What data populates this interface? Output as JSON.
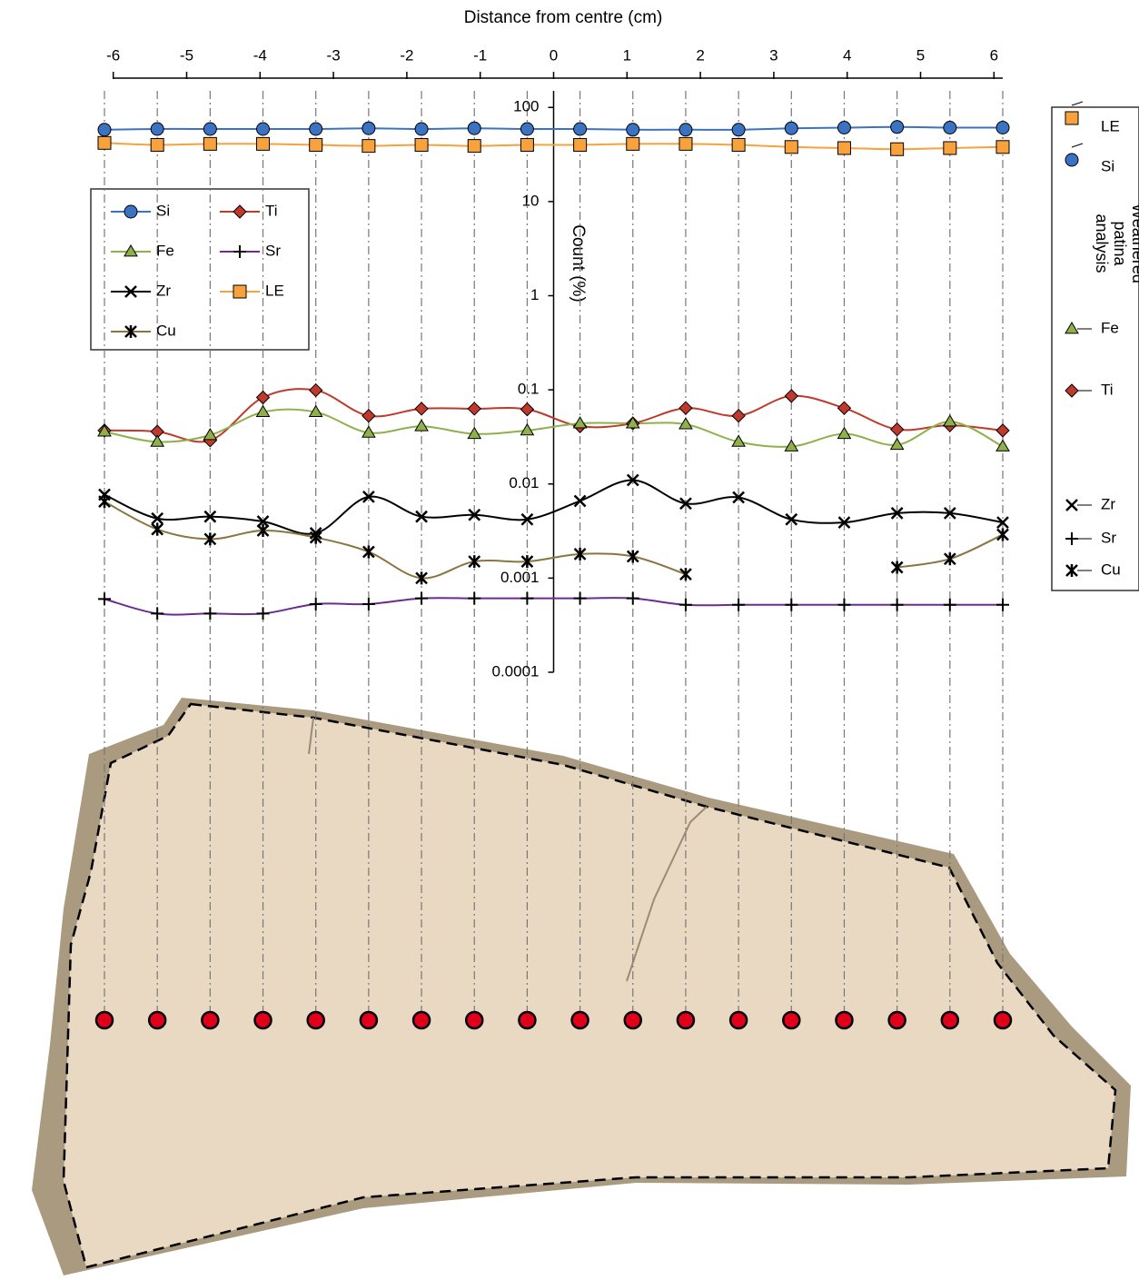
{
  "chart_data": {
    "type": "line",
    "title": "Distance from centre (cm)",
    "y_label": "Count (%)",
    "log_scale_y": true,
    "x": [
      -6.12,
      -5.4,
      -4.68,
      -3.96,
      -3.24,
      -2.52,
      -1.8,
      -1.08,
      -0.36,
      0.36,
      1.08,
      1.8,
      2.52,
      3.24,
      3.96,
      4.68,
      5.4,
      6.12
    ],
    "xlim": [
      -6.12,
      6.12
    ],
    "xticks": [
      -6,
      -5,
      -4,
      -3,
      -2,
      -1,
      0,
      1,
      2,
      3,
      4,
      5,
      6
    ],
    "ylim": [
      0.0001,
      150
    ],
    "yticks": [
      100,
      10,
      1,
      0.1,
      0.01,
      0.001,
      0.0001
    ],
    "series": [
      {
        "name": "Si",
        "color": "#3b73c2",
        "marker": "circle",
        "values": [
          58,
          59,
          59,
          59,
          59,
          60,
          59,
          60,
          59,
          59,
          58,
          58,
          58,
          60,
          61,
          62,
          61,
          61
        ]
      },
      {
        "name": "Ti",
        "color": "#c0392b",
        "marker": "diamond",
        "values": [
          0.037,
          0.036,
          0.029,
          0.083,
          0.099,
          0.053,
          0.063,
          0.063,
          0.062,
          0.041,
          0.044,
          0.064,
          0.053,
          0.086,
          0.064,
          0.038,
          0.042,
          0.037
        ]
      },
      {
        "name": "Fe",
        "color": "#8fb04a",
        "marker": "triangle",
        "values": [
          0.036,
          0.028,
          0.033,
          0.058,
          0.058,
          0.035,
          0.041,
          0.034,
          0.037,
          0.044,
          0.044,
          0.043,
          0.028,
          0.025,
          0.034,
          0.026,
          0.046,
          0.025
        ]
      },
      {
        "name": "Sr",
        "color": "#6a2c91",
        "marker": "plus",
        "values": [
          0.0006,
          0.00042,
          0.00042,
          0.00042,
          0.00053,
          0.00053,
          0.00061,
          0.00061,
          0.00061,
          0.00061,
          0.00061,
          0.00052,
          0.00052,
          0.00052,
          0.00052,
          0.00052,
          0.00052,
          0.00052
        ]
      },
      {
        "name": "Zr",
        "color": "#000000",
        "marker": "cross",
        "values": [
          0.0077,
          0.0043,
          0.0045,
          0.004,
          0.003,
          0.0073,
          0.0045,
          0.0047,
          0.0042,
          0.0066,
          0.011,
          0.0062,
          0.0072,
          0.0042,
          0.0039,
          0.0049,
          0.0049,
          0.0039
        ]
      },
      {
        "name": "LE",
        "color": "#f7a23c",
        "marker": "square",
        "values": [
          42,
          40,
          41,
          41,
          40,
          39,
          40,
          39,
          40,
          40,
          41,
          41,
          40,
          38,
          37,
          36,
          37,
          38
        ]
      },
      {
        "name": "Cu",
        "color": "#8b7440",
        "marker": "asterisk",
        "values": [
          0.0065,
          0.0033,
          0.0026,
          0.0032,
          0.0027,
          0.0019,
          0.001,
          0.0015,
          0.0015,
          0.0018,
          0.0017,
          0.0011,
          null,
          null,
          null,
          0.0013,
          0.0016,
          0.0029
        ]
      }
    ],
    "side_legend": {
      "title": "Weathered patina analysis",
      "entries": [
        "LE",
        "Si",
        "Fe",
        "Ti",
        "Zr",
        "Sr",
        "Cu"
      ]
    }
  }
}
